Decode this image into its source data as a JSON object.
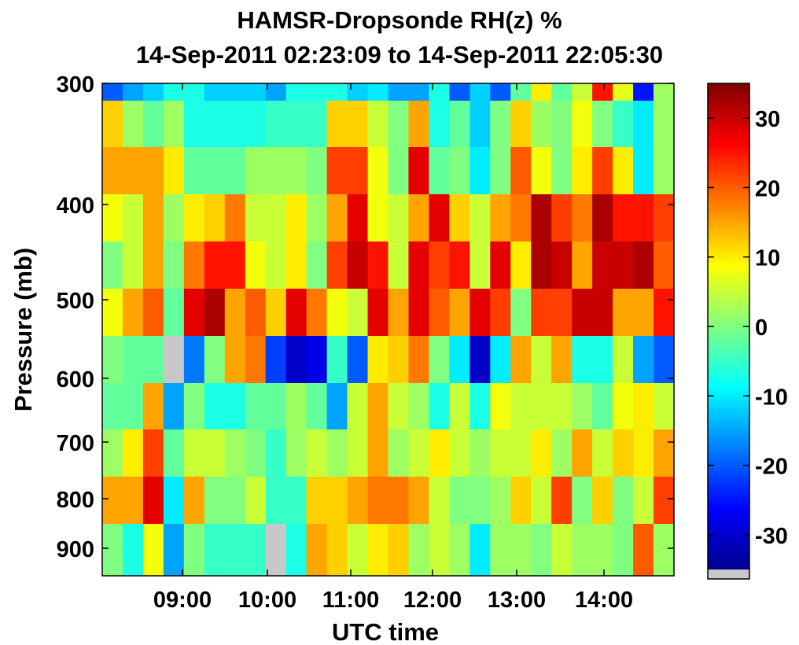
{
  "chart_data": {
    "type": "heatmap",
    "title": "HAMSR-Dropsonde RH(z) %",
    "subtitle": "14-Sep-2011 02:23:09 to 14-Sep-2011 22:05:30",
    "xlabel": "UTC time",
    "ylabel": "Pressure (mb)",
    "x_tick_labels": [
      "09:00",
      "10:00",
      "11:00",
      "12:00",
      "13:00",
      "14:00"
    ],
    "y_tick_labels": [
      "300",
      "400",
      "500",
      "600",
      "700",
      "800",
      "900"
    ],
    "colorbar": {
      "ticks": [
        30,
        20,
        10,
        0,
        -10,
        -20,
        -30
      ],
      "range": [
        -35,
        35
      ],
      "colormap": "jet",
      "missing_color": "#c8c8c8"
    },
    "y_levels_note": "rows top to bottom",
    "values": [
      [
        -20,
        -15,
        -12,
        -7,
        -7,
        -12,
        -12,
        -12,
        -15,
        -7,
        -7,
        -7,
        -12,
        -10,
        -15,
        -15,
        -7,
        -20,
        -12,
        -20,
        -2,
        10,
        -2,
        5,
        25,
        7,
        -25,
        2
      ],
      [
        12,
        2,
        -2,
        2,
        -7,
        -7,
        -7,
        -7,
        -5,
        -5,
        -5,
        12,
        12,
        5,
        0,
        15,
        -7,
        -2,
        -12,
        0,
        12,
        2,
        0,
        8,
        0,
        -5,
        -10,
        2
      ],
      [
        15,
        15,
        15,
        10,
        -2,
        -2,
        -2,
        2,
        2,
        2,
        0,
        22,
        22,
        8,
        0,
        28,
        -2,
        0,
        -10,
        0,
        20,
        8,
        0,
        10,
        22,
        10,
        -10,
        2
      ],
      [
        8,
        5,
        15,
        2,
        10,
        12,
        18,
        5,
        5,
        10,
        2,
        15,
        28,
        8,
        5,
        15,
        28,
        12,
        5,
        15,
        18,
        32,
        22,
        18,
        32,
        25,
        25,
        22
      ],
      [
        0,
        5,
        15,
        0,
        18,
        25,
        25,
        8,
        5,
        10,
        0,
        22,
        30,
        25,
        5,
        28,
        22,
        25,
        5,
        28,
        10,
        32,
        30,
        15,
        30,
        30,
        32,
        20
      ],
      [
        8,
        15,
        20,
        -2,
        28,
        32,
        15,
        20,
        12,
        28,
        18,
        8,
        5,
        28,
        15,
        28,
        20,
        15,
        28,
        22,
        0,
        22,
        22,
        30,
        30,
        15,
        15,
        25
      ],
      [
        0,
        -2,
        -2,
        null,
        -18,
        0,
        15,
        18,
        -22,
        -30,
        -28,
        -5,
        -20,
        10,
        12,
        18,
        0,
        -10,
        -30,
        -10,
        15,
        5,
        15,
        -7,
        -7,
        5,
        -15,
        -20
      ],
      [
        -2,
        -2,
        15,
        -15,
        0,
        -7,
        -7,
        -2,
        -2,
        2,
        -2,
        -15,
        5,
        15,
        5,
        2,
        -7,
        5,
        -7,
        8,
        5,
        5,
        5,
        2,
        -2,
        8,
        10,
        5
      ],
      [
        2,
        10,
        22,
        -2,
        5,
        5,
        2,
        0,
        -5,
        2,
        5,
        2,
        5,
        15,
        2,
        5,
        10,
        5,
        2,
        5,
        5,
        10,
        2,
        15,
        5,
        12,
        10,
        15
      ],
      [
        15,
        15,
        28,
        -10,
        15,
        0,
        0,
        5,
        -5,
        -5,
        12,
        12,
        15,
        18,
        18,
        15,
        5,
        0,
        0,
        2,
        12,
        5,
        22,
        0,
        12,
        0,
        5,
        22
      ],
      [
        0,
        -7,
        8,
        -15,
        0,
        -5,
        -5,
        -5,
        null,
        -7,
        15,
        12,
        5,
        10,
        12,
        2,
        5,
        2,
        -10,
        2,
        2,
        0,
        5,
        2,
        2,
        0,
        20,
        2
      ]
    ]
  }
}
